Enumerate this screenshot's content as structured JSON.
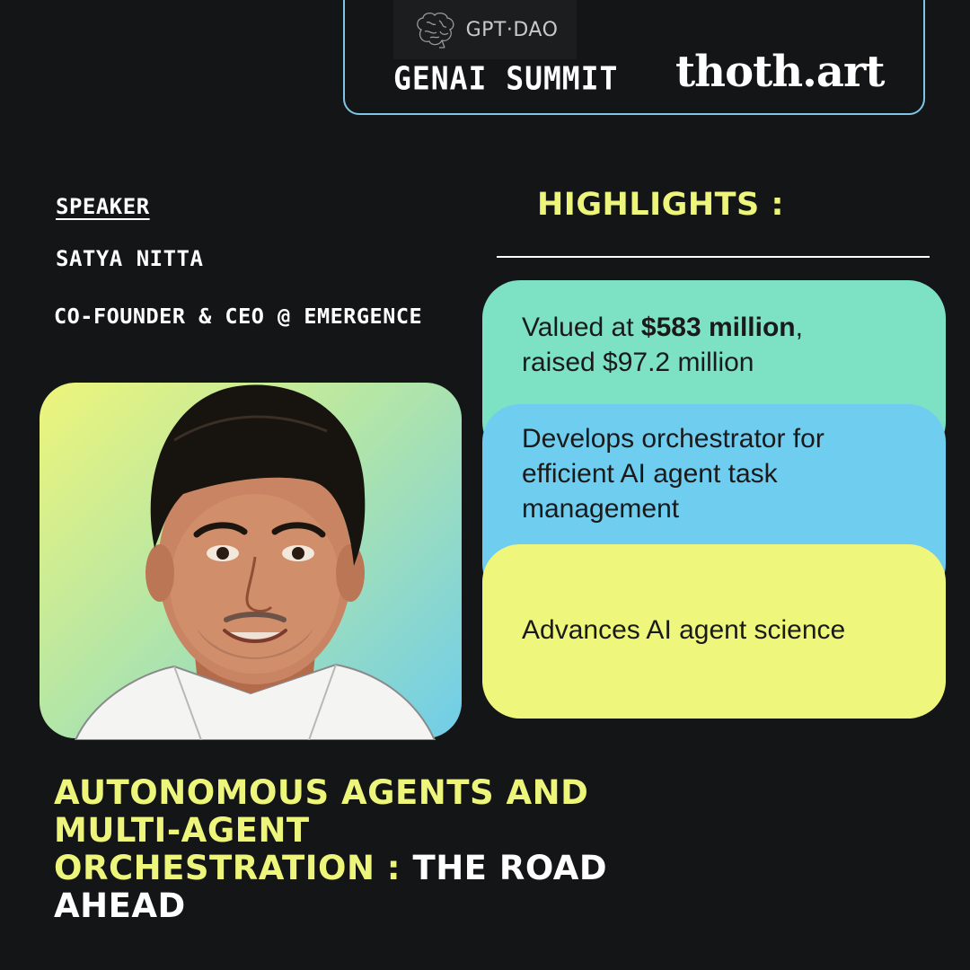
{
  "header": {
    "logo_text": "GPT·DAO",
    "summit": "GENAI SUMMIT",
    "brand": "thoth.art"
  },
  "speaker": {
    "label": "SPEAKER",
    "name": "SATYA NITTA",
    "role": "CO-FOUNDER & CEO @ EMERGENCE"
  },
  "highlights": {
    "title": "HIGHLIGHTS :",
    "items": [
      {
        "prefix": "Valued at ",
        "bold": "$583 million",
        "suffix": ",",
        "line2": "raised $97.2 million"
      },
      {
        "text": "Develops orchestrator for efficient AI agent task management"
      },
      {
        "text": "Advances AI agent science"
      }
    ]
  },
  "talk": {
    "title_yellow": "AUTONOMOUS AGENTS AND MULTI-AGENT ORCHESTRATION :",
    "title_white": " THE ROAD AHEAD"
  },
  "colors": {
    "background": "#131516",
    "accent_yellow": "#eef57b",
    "card_green": "#7de1c3",
    "card_blue": "#6fcdf0",
    "card_yellow": "#eef77c",
    "header_border": "#7fc6e6"
  }
}
